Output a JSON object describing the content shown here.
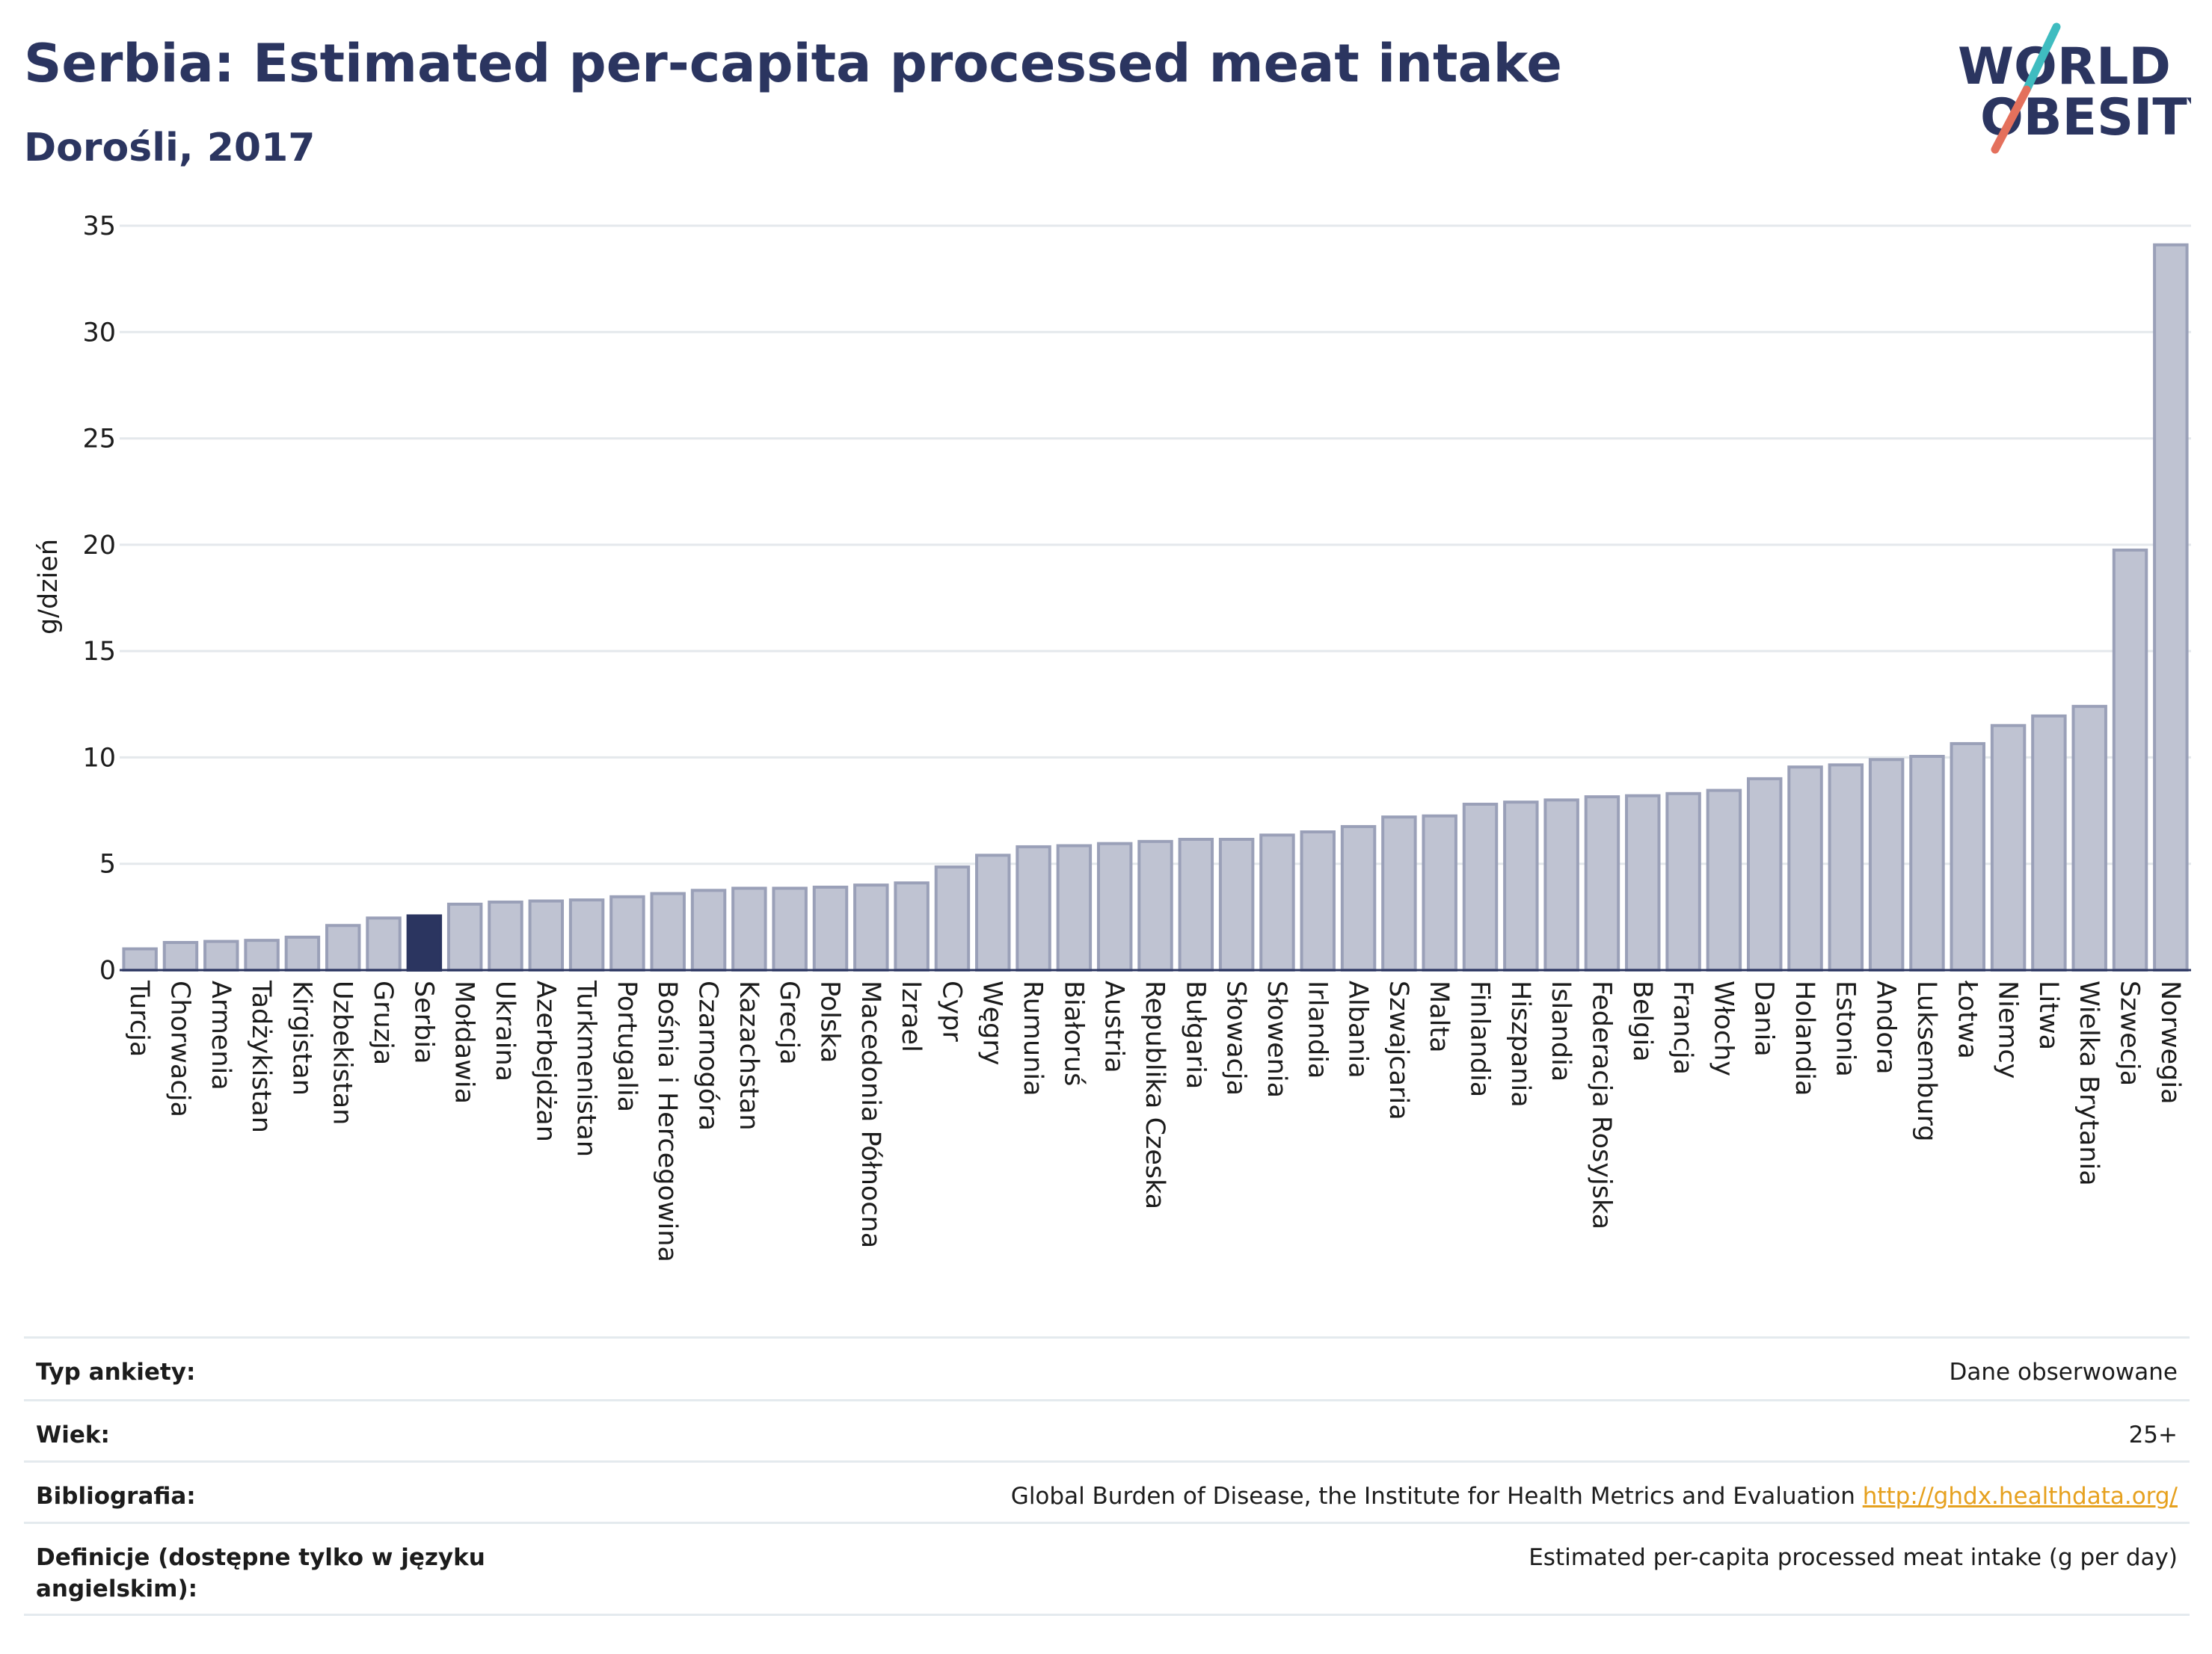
{
  "header": {
    "title": "Serbia: Estimated per-capita processed meat intake",
    "subtitle": "Dorośli, 2017"
  },
  "logo": {
    "line1": "WORLD",
    "line2": "OBESITY",
    "accent_colors": [
      "#3fbcc0",
      "#e4705c"
    ]
  },
  "colors": {
    "bar": "#bfc3d2",
    "bar_stroke": "#9aa0b8",
    "highlight": "#2b3560",
    "grid": "#e4e8ec",
    "axis": "#2b3560"
  },
  "chart_data": {
    "type": "bar",
    "ylabel": "g/dzień",
    "ylim": [
      0,
      35
    ],
    "yticks": [
      0,
      5,
      10,
      15,
      20,
      25,
      30,
      35
    ],
    "highlight": "Serbia",
    "categories": [
      "Turcja",
      "Chorwacja",
      "Armenia",
      "Tadżykistan",
      "Kirgistan",
      "Uzbekistan",
      "Gruzja",
      "Serbia",
      "Mołdawia",
      "Ukraina",
      "Azerbejdżan",
      "Turkmenistan",
      "Portugalia",
      "Bośnia i Hercegowina",
      "Czarnogóra",
      "Kazachstan",
      "Grecja",
      "Polska",
      "Macedonia Północna",
      "Izrael",
      "Cypr",
      "Węgry",
      "Rumunia",
      "Białoruś",
      "Austria",
      "Republika Czeska",
      "Bułgaria",
      "Słowacja",
      "Słowenia",
      "Irlandia",
      "Albania",
      "Szwajcaria",
      "Malta",
      "Finlandia",
      "Hiszpania",
      "Islandia",
      "Federacja Rosyjska",
      "Belgia",
      "Francja",
      "Włochy",
      "Dania",
      "Holandia",
      "Estonia",
      "Andora",
      "Luksemburg",
      "Łotwa",
      "Niemcy",
      "Litwa",
      "Wielka Brytania",
      "Szwecja",
      "Norwegia"
    ],
    "values": [
      1.0,
      1.3,
      1.35,
      1.4,
      1.55,
      2.1,
      2.45,
      2.55,
      3.1,
      3.2,
      3.25,
      3.3,
      3.45,
      3.6,
      3.75,
      3.85,
      3.85,
      3.9,
      4.0,
      4.1,
      4.85,
      5.4,
      5.8,
      5.85,
      5.95,
      6.05,
      6.15,
      6.15,
      6.35,
      6.5,
      6.75,
      7.2,
      7.25,
      7.8,
      7.9,
      8.0,
      8.15,
      8.2,
      8.3,
      8.45,
      9.0,
      9.55,
      9.65,
      9.9,
      10.05,
      10.65,
      11.5,
      11.95,
      12.4,
      19.75,
      34.1
    ]
  },
  "info_table": {
    "rows": [
      {
        "label": "Typ ankiety:",
        "value": "Dane obserwowane"
      },
      {
        "label": "Wiek:",
        "value": "25+"
      },
      {
        "label": "Bibliografia:",
        "value": "Global Burden of Disease, the Institute for Health Metrics and Evaluation",
        "link": "http://ghdx.healthdata.org/"
      },
      {
        "label": "Definicje (dostępne tylko w języku angielskim):",
        "value": "Estimated per-capita processed meat intake (g per day)"
      }
    ]
  }
}
